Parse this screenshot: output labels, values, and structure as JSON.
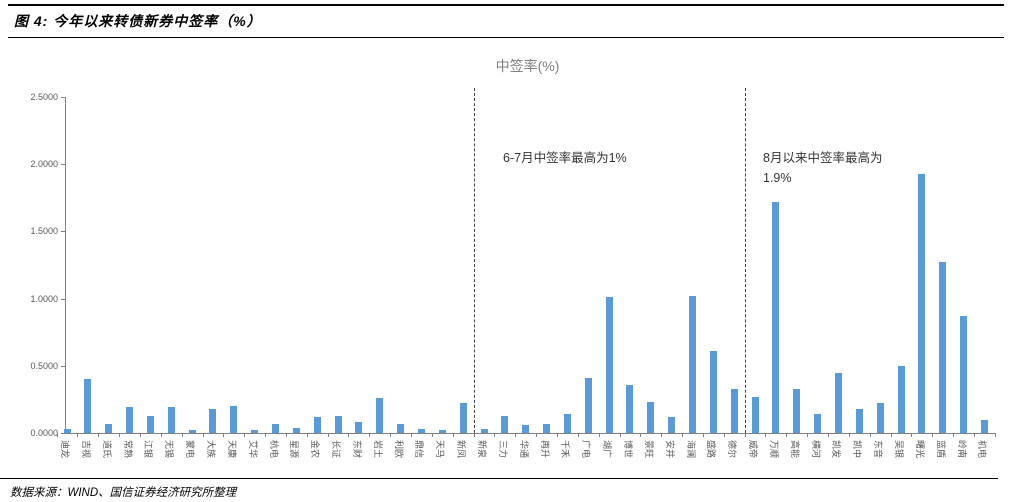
{
  "header": {
    "title": "图 4: 今年以来转债新券中签率（%）"
  },
  "chart_data": {
    "type": "bar",
    "title": "中签率(%)",
    "categories": [
      "迪龙",
      "吉视",
      "道氏",
      "常熟",
      "江银",
      "无锡",
      "蒙电",
      "大族",
      "天康",
      "艾华",
      "杭电",
      "星源",
      "金农",
      "长证",
      "东财",
      "岩土",
      "利欧",
      "鼎信",
      "天马",
      "新凤",
      "新泉",
      "三力",
      "华通",
      "再升",
      "千禾",
      "广电",
      "湖广",
      "博世",
      "景旺",
      "安井",
      "海澜",
      "盛路",
      "德尔",
      "威帝",
      "万顺",
      "高能",
      "横河",
      "凯发",
      "凯中",
      "东音",
      "吴银",
      "曙光",
      "蓝盾",
      "岭南",
      "机电"
    ],
    "values": [
      0.03,
      0.4,
      0.07,
      0.19,
      0.13,
      0.19,
      0.02,
      0.18,
      0.2,
      0.02,
      0.07,
      0.04,
      0.12,
      0.13,
      0.08,
      0.26,
      0.07,
      0.03,
      0.02,
      0.22,
      0.03,
      0.13,
      0.06,
      0.07,
      0.14,
      0.41,
      1.01,
      0.36,
      0.23,
      0.12,
      1.02,
      0.61,
      0.33,
      0.27,
      1.72,
      0.33,
      0.14,
      0.45,
      0.18,
      0.22,
      0.5,
      1.93,
      1.27,
      0.87,
      0.1
    ],
    "xlabel": "",
    "ylabel": "",
    "ylim": [
      0,
      2.5
    ],
    "yticks": [
      "0.0000",
      "0.5000",
      "1.0000",
      "1.5000",
      "2.0000",
      "2.5000"
    ],
    "grid": false,
    "legend": "none",
    "bar_color": "#5B9BD5",
    "separators_after": [
      "新凤",
      "德尔"
    ],
    "annotations": [
      {
        "text": "6-7月中签率最高为1%"
      },
      {
        "text": "8月以来中签率最高为\n1.9%"
      }
    ]
  },
  "footer": {
    "source": "数据来源：WIND、国信证券经济研究所整理"
  }
}
